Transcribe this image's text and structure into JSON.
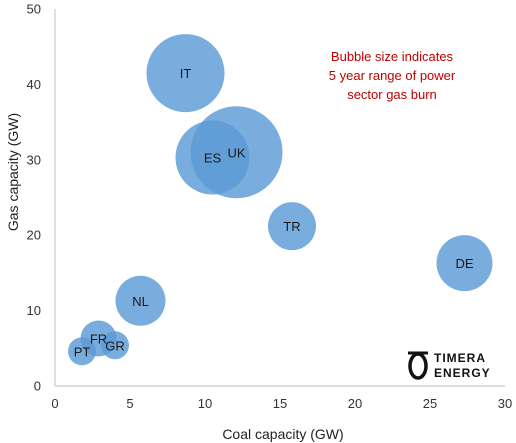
{
  "chart_data": {
    "type": "scatter",
    "xlabel": "Coal capacity (GW)",
    "ylabel": "Gas capacity (GW)",
    "xlim": [
      0,
      30
    ],
    "ylim": [
      0,
      50
    ],
    "xticks": [
      0,
      5,
      10,
      15,
      20,
      25,
      30
    ],
    "yticks": [
      0,
      10,
      20,
      30,
      40,
      50
    ],
    "grid": false,
    "annotation": [
      "Bubble size indicates",
      "5 year range of power",
      "sector gas burn"
    ],
    "annotation_color": "#c00000",
    "bubble_color": "#5b9bd5",
    "points": [
      {
        "label": "IT",
        "x": 8.7,
        "y": 41.5,
        "size": 39
      },
      {
        "label": "UK",
        "x": 12.1,
        "y": 31.0,
        "size": 46
      },
      {
        "label": "ES",
        "x": 10.5,
        "y": 30.3,
        "size": 37
      },
      {
        "label": "TR",
        "x": 15.8,
        "y": 21.2,
        "size": 24
      },
      {
        "label": "DE",
        "x": 27.3,
        "y": 16.3,
        "size": 28
      },
      {
        "label": "NL",
        "x": 5.7,
        "y": 11.3,
        "size": 25
      },
      {
        "label": "FR",
        "x": 2.9,
        "y": 6.3,
        "size": 18
      },
      {
        "label": "GR",
        "x": 4.0,
        "y": 5.4,
        "size": 14
      },
      {
        "label": "PT",
        "x": 1.8,
        "y": 4.6,
        "size": 14
      }
    ]
  },
  "logo": {
    "line1": "TIMERA",
    "line2": "ENERGY"
  }
}
